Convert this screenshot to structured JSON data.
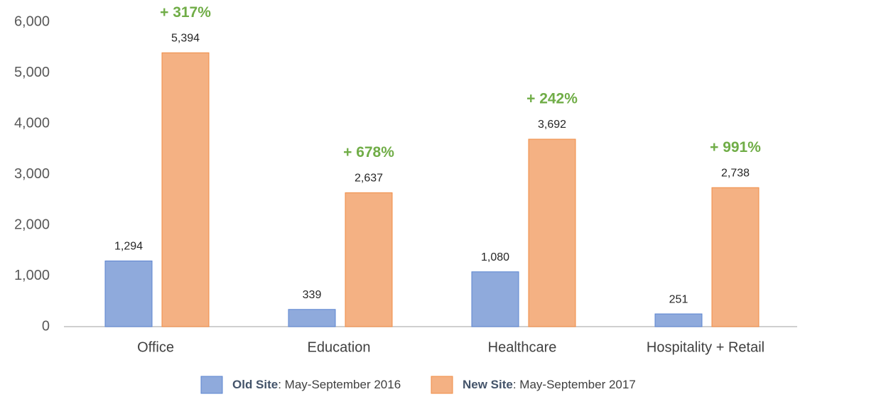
{
  "chart_data": {
    "type": "bar",
    "categories": [
      "Office",
      "Education",
      "Healthcare",
      "Hospitality + Retail"
    ],
    "series": [
      {
        "name": "Old Site",
        "name_suffix": ": May-September 2016",
        "color": "#8faadc",
        "edge": "#5b84d1",
        "values": [
          1294,
          339,
          1080,
          251
        ],
        "value_labels": [
          "1,294",
          "339",
          "1,080",
          "251"
        ]
      },
      {
        "name": "New Site",
        "name_suffix": ": May-September 2017",
        "color": "#f4b183",
        "edge": "#f08c45",
        "values": [
          5394,
          2637,
          3692,
          2738
        ],
        "value_labels": [
          "5,394",
          "2,637",
          "3,692",
          "2,738"
        ]
      }
    ],
    "annotations": [
      "+ 317%",
      "+ 678%",
      "+ 242%",
      "+ 991%"
    ],
    "ylim": [
      0,
      6000
    ],
    "yticks": [
      0,
      {
        "value": 1000,
        "label": "1,000"
      },
      {
        "value": 2000,
        "label": "2,000"
      },
      {
        "value": 3000,
        "label": "3,000"
      },
      {
        "value": 4000,
        "label": "4,000"
      },
      {
        "value": 5000,
        "label": "5,000"
      },
      {
        "value": 6000,
        "label": "6,000"
      }
    ],
    "grid": false,
    "legend": "bottom"
  }
}
